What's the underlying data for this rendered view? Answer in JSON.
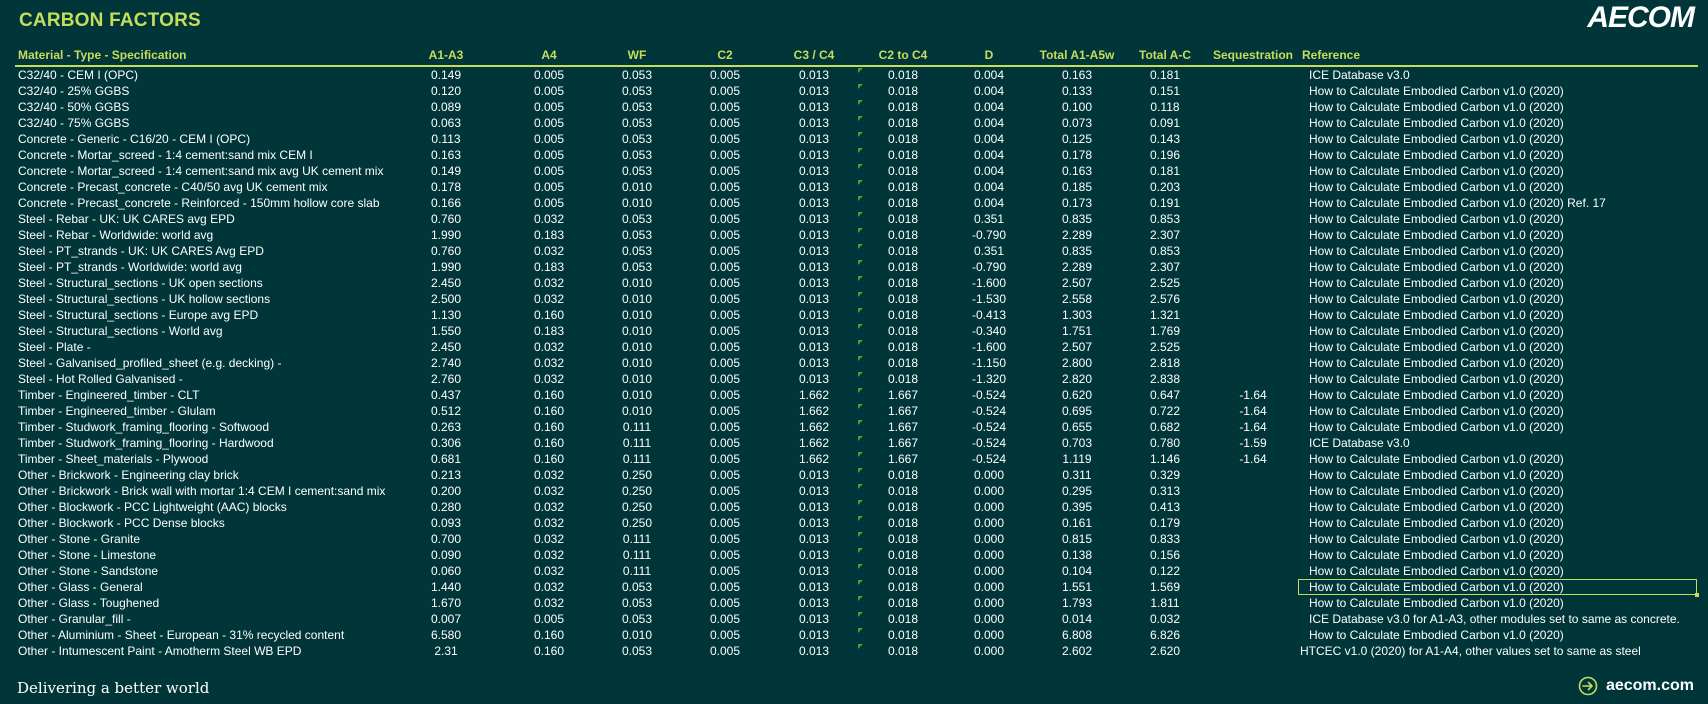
{
  "title": "CARBON FACTORS",
  "brand": "AECOM",
  "tagline": "Delivering a better world",
  "website": "aecom.com",
  "colors": {
    "background": "#00363a",
    "accent": "#c5dd5a"
  },
  "headers": {
    "material": "Material - Type - Specification",
    "a1a3": "A1-A3",
    "a4": "A4",
    "wf": "WF",
    "c2": "C2",
    "c3c4": "C3 / C4",
    "c2toc4": "C2 to C4",
    "d": "D",
    "total_a1a5w": "Total A1-A5w",
    "total_ac": "Total A-C",
    "sequestration": "Sequestration",
    "reference": "Reference"
  },
  "rows": [
    {
      "material": "C32/40 - CEM I (OPC)",
      "a1a3": "0.149",
      "a4": "0.005",
      "wf": "0.053",
      "c2": "0.005",
      "c3c4": "0.013",
      "c2toc4": "0.018",
      "d": "0.004",
      "total_a1a5w": "0.163",
      "total_ac": "0.181",
      "sequestration": "",
      "reference": "ICE Database v3.0"
    },
    {
      "material": "C32/40 - 25% GGBS",
      "a1a3": "0.120",
      "a4": "0.005",
      "wf": "0.053",
      "c2": "0.005",
      "c3c4": "0.013",
      "c2toc4": "0.018",
      "d": "0.004",
      "total_a1a5w": "0.133",
      "total_ac": "0.151",
      "sequestration": "",
      "reference": "How to Calculate Embodied Carbon v1.0 (2020)"
    },
    {
      "material": "C32/40 - 50% GGBS",
      "a1a3": "0.089",
      "a4": "0.005",
      "wf": "0.053",
      "c2": "0.005",
      "c3c4": "0.013",
      "c2toc4": "0.018",
      "d": "0.004",
      "total_a1a5w": "0.100",
      "total_ac": "0.118",
      "sequestration": "",
      "reference": "How to Calculate Embodied Carbon v1.0 (2020)"
    },
    {
      "material": "C32/40 - 75% GGBS",
      "a1a3": "0.063",
      "a4": "0.005",
      "wf": "0.053",
      "c2": "0.005",
      "c3c4": "0.013",
      "c2toc4": "0.018",
      "d": "0.004",
      "total_a1a5w": "0.073",
      "total_ac": "0.091",
      "sequestration": "",
      "reference": "How to Calculate Embodied Carbon v1.0 (2020)"
    },
    {
      "material": "Concrete - Generic - C16/20 - CEM I (OPC)",
      "a1a3": "0.113",
      "a4": "0.005",
      "wf": "0.053",
      "c2": "0.005",
      "c3c4": "0.013",
      "c2toc4": "0.018",
      "d": "0.004",
      "total_a1a5w": "0.125",
      "total_ac": "0.143",
      "sequestration": "",
      "reference": "How to Calculate Embodied Carbon v1.0 (2020)"
    },
    {
      "material": "Concrete - Mortar_screed - 1:4 cement:sand mix CEM I",
      "a1a3": "0.163",
      "a4": "0.005",
      "wf": "0.053",
      "c2": "0.005",
      "c3c4": "0.013",
      "c2toc4": "0.018",
      "d": "0.004",
      "total_a1a5w": "0.178",
      "total_ac": "0.196",
      "sequestration": "",
      "reference": "How to Calculate Embodied Carbon v1.0 (2020)"
    },
    {
      "material": "Concrete - Mortar_screed - 1:4 cement:sand mix avg UK cement mix",
      "a1a3": "0.149",
      "a4": "0.005",
      "wf": "0.053",
      "c2": "0.005",
      "c3c4": "0.013",
      "c2toc4": "0.018",
      "d": "0.004",
      "total_a1a5w": "0.163",
      "total_ac": "0.181",
      "sequestration": "",
      "reference": "How to Calculate Embodied Carbon v1.0 (2020)"
    },
    {
      "material": "Concrete - Precast_concrete - C40/50 avg UK cement mix",
      "a1a3": "0.178",
      "a4": "0.005",
      "wf": "0.010",
      "c2": "0.005",
      "c3c4": "0.013",
      "c2toc4": "0.018",
      "d": "0.004",
      "total_a1a5w": "0.185",
      "total_ac": "0.203",
      "sequestration": "",
      "reference": "How to Calculate Embodied Carbon v1.0 (2020)"
    },
    {
      "material": "Concrete - Precast_concrete - Reinforced - 150mm hollow core slab",
      "a1a3": "0.166",
      "a4": "0.005",
      "wf": "0.010",
      "c2": "0.005",
      "c3c4": "0.013",
      "c2toc4": "0.018",
      "d": "0.004",
      "total_a1a5w": "0.173",
      "total_ac": "0.191",
      "sequestration": "",
      "reference": "How to Calculate Embodied Carbon v1.0 (2020) Ref. 17"
    },
    {
      "material": "Steel - Rebar - UK: UK CARES avg EPD",
      "a1a3": "0.760",
      "a4": "0.032",
      "wf": "0.053",
      "c2": "0.005",
      "c3c4": "0.013",
      "c2toc4": "0.018",
      "d": "0.351",
      "total_a1a5w": "0.835",
      "total_ac": "0.853",
      "sequestration": "",
      "reference": "How to Calculate Embodied Carbon v1.0 (2020)"
    },
    {
      "material": "Steel - Rebar - Worldwide: world avg",
      "a1a3": "1.990",
      "a4": "0.183",
      "wf": "0.053",
      "c2": "0.005",
      "c3c4": "0.013",
      "c2toc4": "0.018",
      "d": "-0.790",
      "total_a1a5w": "2.289",
      "total_ac": "2.307",
      "sequestration": "",
      "reference": "How to Calculate Embodied Carbon v1.0 (2020)"
    },
    {
      "material": "Steel - PT_strands - UK: UK CARES Avg EPD",
      "a1a3": "0.760",
      "a4": "0.032",
      "wf": "0.053",
      "c2": "0.005",
      "c3c4": "0.013",
      "c2toc4": "0.018",
      "d": "0.351",
      "total_a1a5w": "0.835",
      "total_ac": "0.853",
      "sequestration": "",
      "reference": "How to Calculate Embodied Carbon v1.0 (2020)"
    },
    {
      "material": "Steel - PT_strands - Worldwide: world avg",
      "a1a3": "1.990",
      "a4": "0.183",
      "wf": "0.053",
      "c2": "0.005",
      "c3c4": "0.013",
      "c2toc4": "0.018",
      "d": "-0.790",
      "total_a1a5w": "2.289",
      "total_ac": "2.307",
      "sequestration": "",
      "reference": "How to Calculate Embodied Carbon v1.0 (2020)"
    },
    {
      "material": "Steel - Structural_sections - UK open sections",
      "a1a3": "2.450",
      "a4": "0.032",
      "wf": "0.010",
      "c2": "0.005",
      "c3c4": "0.013",
      "c2toc4": "0.018",
      "d": "-1.600",
      "total_a1a5w": "2.507",
      "total_ac": "2.525",
      "sequestration": "",
      "reference": "How to Calculate Embodied Carbon v1.0 (2020)"
    },
    {
      "material": "Steel - Structural_sections - UK hollow sections",
      "a1a3": "2.500",
      "a4": "0.032",
      "wf": "0.010",
      "c2": "0.005",
      "c3c4": "0.013",
      "c2toc4": "0.018",
      "d": "-1.530",
      "total_a1a5w": "2.558",
      "total_ac": "2.576",
      "sequestration": "",
      "reference": "How to Calculate Embodied Carbon v1.0 (2020)"
    },
    {
      "material": "Steel - Structural_sections - Europe avg EPD",
      "a1a3": "1.130",
      "a4": "0.160",
      "wf": "0.010",
      "c2": "0.005",
      "c3c4": "0.013",
      "c2toc4": "0.018",
      "d": "-0.413",
      "total_a1a5w": "1.303",
      "total_ac": "1.321",
      "sequestration": "",
      "reference": "How to Calculate Embodied Carbon v1.0 (2020)"
    },
    {
      "material": "Steel - Structural_sections - World avg",
      "a1a3": "1.550",
      "a4": "0.183",
      "wf": "0.010",
      "c2": "0.005",
      "c3c4": "0.013",
      "c2toc4": "0.018",
      "d": "-0.340",
      "total_a1a5w": "1.751",
      "total_ac": "1.769",
      "sequestration": "",
      "reference": "How to Calculate Embodied Carbon v1.0 (2020)"
    },
    {
      "material": "Steel - Plate -",
      "a1a3": "2.450",
      "a4": "0.032",
      "wf": "0.010",
      "c2": "0.005",
      "c3c4": "0.013",
      "c2toc4": "0.018",
      "d": "-1.600",
      "total_a1a5w": "2.507",
      "total_ac": "2.525",
      "sequestration": "",
      "reference": "How to Calculate Embodied Carbon v1.0 (2020)"
    },
    {
      "material": "Steel - Galvanised_profiled_sheet (e.g. decking) -",
      "a1a3": "2.740",
      "a4": "0.032",
      "wf": "0.010",
      "c2": "0.005",
      "c3c4": "0.013",
      "c2toc4": "0.018",
      "d": "-1.150",
      "total_a1a5w": "2.800",
      "total_ac": "2.818",
      "sequestration": "",
      "reference": "How to Calculate Embodied Carbon v1.0 (2020)"
    },
    {
      "material": "Steel - Hot Rolled Galvanised -",
      "a1a3": "2.760",
      "a4": "0.032",
      "wf": "0.010",
      "c2": "0.005",
      "c3c4": "0.013",
      "c2toc4": "0.018",
      "d": "-1.320",
      "total_a1a5w": "2.820",
      "total_ac": "2.838",
      "sequestration": "",
      "reference": "How to Calculate Embodied Carbon v1.0 (2020)"
    },
    {
      "material": "Timber - Engineered_timber - CLT",
      "a1a3": "0.437",
      "a4": "0.160",
      "wf": "0.010",
      "c2": "0.005",
      "c3c4": "1.662",
      "c2toc4": "1.667",
      "d": "-0.524",
      "total_a1a5w": "0.620",
      "total_ac": "0.647",
      "sequestration": "-1.64",
      "reference": "How to Calculate Embodied Carbon v1.0 (2020)"
    },
    {
      "material": "Timber - Engineered_timber - Glulam",
      "a1a3": "0.512",
      "a4": "0.160",
      "wf": "0.010",
      "c2": "0.005",
      "c3c4": "1.662",
      "c2toc4": "1.667",
      "d": "-0.524",
      "total_a1a5w": "0.695",
      "total_ac": "0.722",
      "sequestration": "-1.64",
      "reference": "How to Calculate Embodied Carbon v1.0 (2020)"
    },
    {
      "material": "Timber - Studwork_framing_flooring - Softwood",
      "a1a3": "0.263",
      "a4": "0.160",
      "wf": "0.111",
      "c2": "0.005",
      "c3c4": "1.662",
      "c2toc4": "1.667",
      "d": "-0.524",
      "total_a1a5w": "0.655",
      "total_ac": "0.682",
      "sequestration": "-1.64",
      "reference": "How to Calculate Embodied Carbon v1.0 (2020)"
    },
    {
      "material": "Timber - Studwork_framing_flooring - Hardwood",
      "a1a3": "0.306",
      "a4": "0.160",
      "wf": "0.111",
      "c2": "0.005",
      "c3c4": "1.662",
      "c2toc4": "1.667",
      "d": "-0.524",
      "total_a1a5w": "0.703",
      "total_ac": "0.780",
      "sequestration": "-1.59",
      "reference": "ICE Database v3.0"
    },
    {
      "material": "Timber - Sheet_materials - Plywood",
      "a1a3": "0.681",
      "a4": "0.160",
      "wf": "0.111",
      "c2": "0.005",
      "c3c4": "1.662",
      "c2toc4": "1.667",
      "d": "-0.524",
      "total_a1a5w": "1.119",
      "total_ac": "1.146",
      "sequestration": "-1.64",
      "reference": "How to Calculate Embodied Carbon v1.0 (2020)"
    },
    {
      "material": "Other - Brickwork - Engineering clay brick",
      "a1a3": "0.213",
      "a4": "0.032",
      "wf": "0.250",
      "c2": "0.005",
      "c3c4": "0.013",
      "c2toc4": "0.018",
      "d": "0.000",
      "total_a1a5w": "0.311",
      "total_ac": "0.329",
      "sequestration": "",
      "reference": "How to Calculate Embodied Carbon v1.0 (2020)"
    },
    {
      "material": "Other - Brickwork - Brick wall with mortar 1:4 CEM I cement:sand mix",
      "a1a3": "0.200",
      "a4": "0.032",
      "wf": "0.250",
      "c2": "0.005",
      "c3c4": "0.013",
      "c2toc4": "0.018",
      "d": "0.000",
      "total_a1a5w": "0.295",
      "total_ac": "0.313",
      "sequestration": "",
      "reference": "How to Calculate Embodied Carbon v1.0 (2020)"
    },
    {
      "material": "Other - Blockwork - PCC Lightweight (AAC) blocks",
      "a1a3": "0.280",
      "a4": "0.032",
      "wf": "0.250",
      "c2": "0.005",
      "c3c4": "0.013",
      "c2toc4": "0.018",
      "d": "0.000",
      "total_a1a5w": "0.395",
      "total_ac": "0.413",
      "sequestration": "",
      "reference": "How to Calculate Embodied Carbon v1.0 (2020)"
    },
    {
      "material": "Other - Blockwork - PCC Dense blocks",
      "a1a3": "0.093",
      "a4": "0.032",
      "wf": "0.250",
      "c2": "0.005",
      "c3c4": "0.013",
      "c2toc4": "0.018",
      "d": "0.000",
      "total_a1a5w": "0.161",
      "total_ac": "0.179",
      "sequestration": "",
      "reference": "How to Calculate Embodied Carbon v1.0 (2020)"
    },
    {
      "material": "Other - Stone - Granite",
      "a1a3": "0.700",
      "a4": "0.032",
      "wf": "0.111",
      "c2": "0.005",
      "c3c4": "0.013",
      "c2toc4": "0.018",
      "d": "0.000",
      "total_a1a5w": "0.815",
      "total_ac": "0.833",
      "sequestration": "",
      "reference": "How to Calculate Embodied Carbon v1.0 (2020)"
    },
    {
      "material": "Other - Stone - Limestone",
      "a1a3": "0.090",
      "a4": "0.032",
      "wf": "0.111",
      "c2": "0.005",
      "c3c4": "0.013",
      "c2toc4": "0.018",
      "d": "0.000",
      "total_a1a5w": "0.138",
      "total_ac": "0.156",
      "sequestration": "",
      "reference": "How to Calculate Embodied Carbon v1.0 (2020)"
    },
    {
      "material": "Other - Stone - Sandstone",
      "a1a3": "0.060",
      "a4": "0.032",
      "wf": "0.111",
      "c2": "0.005",
      "c3c4": "0.013",
      "c2toc4": "0.018",
      "d": "0.000",
      "total_a1a5w": "0.104",
      "total_ac": "0.122",
      "sequestration": "",
      "reference": "How to Calculate Embodied Carbon v1.0 (2020)"
    },
    {
      "material": "Other - Glass - General",
      "a1a3": "1.440",
      "a4": "0.032",
      "wf": "0.053",
      "c2": "0.005",
      "c3c4": "0.013",
      "c2toc4": "0.018",
      "d": "0.000",
      "total_a1a5w": "1.551",
      "total_ac": "1.569",
      "sequestration": "",
      "reference": "How to Calculate Embodied Carbon v1.0 (2020)",
      "selected": true
    },
    {
      "material": "Other - Glass - Toughened",
      "a1a3": "1.670",
      "a4": "0.032",
      "wf": "0.053",
      "c2": "0.005",
      "c3c4": "0.013",
      "c2toc4": "0.018",
      "d": "0.000",
      "total_a1a5w": "1.793",
      "total_ac": "1.811",
      "sequestration": "",
      "reference": "How to Calculate Embodied Carbon v1.0 (2020)"
    },
    {
      "material": "Other - Granular_fill -",
      "a1a3": "0.007",
      "a4": "0.005",
      "wf": "0.053",
      "c2": "0.005",
      "c3c4": "0.013",
      "c2toc4": "0.018",
      "d": "0.000",
      "total_a1a5w": "0.014",
      "total_ac": "0.032",
      "sequestration": "",
      "reference": "ICE Database v3.0 for A1-A3, other modules set to same as concrete."
    },
    {
      "material": "Other - Aluminium - Sheet - European - 31% recycled content",
      "a1a3": "6.580",
      "a4": "0.160",
      "wf": "0.010",
      "c2": "0.005",
      "c3c4": "0.013",
      "c2toc4": "0.018",
      "d": "0.000",
      "total_a1a5w": "6.808",
      "total_ac": "6.826",
      "sequestration": "",
      "reference": "How to Calculate Embodied Carbon v1.0 (2020)"
    },
    {
      "material": "Other - Intumescent Paint - Amotherm Steel WB EPD",
      "a1a3": "2.31",
      "a4": "0.160",
      "wf": "0.053",
      "c2": "0.005",
      "c3c4": "0.013",
      "c2toc4": "0.018",
      "d": "0.000",
      "total_a1a5w": "2.602",
      "total_ac": "2.620",
      "sequestration": "",
      "reference": "HTCEC v1.0 (2020) for A1-A4, other values set to same as steel",
      "reference_shift": true
    }
  ]
}
